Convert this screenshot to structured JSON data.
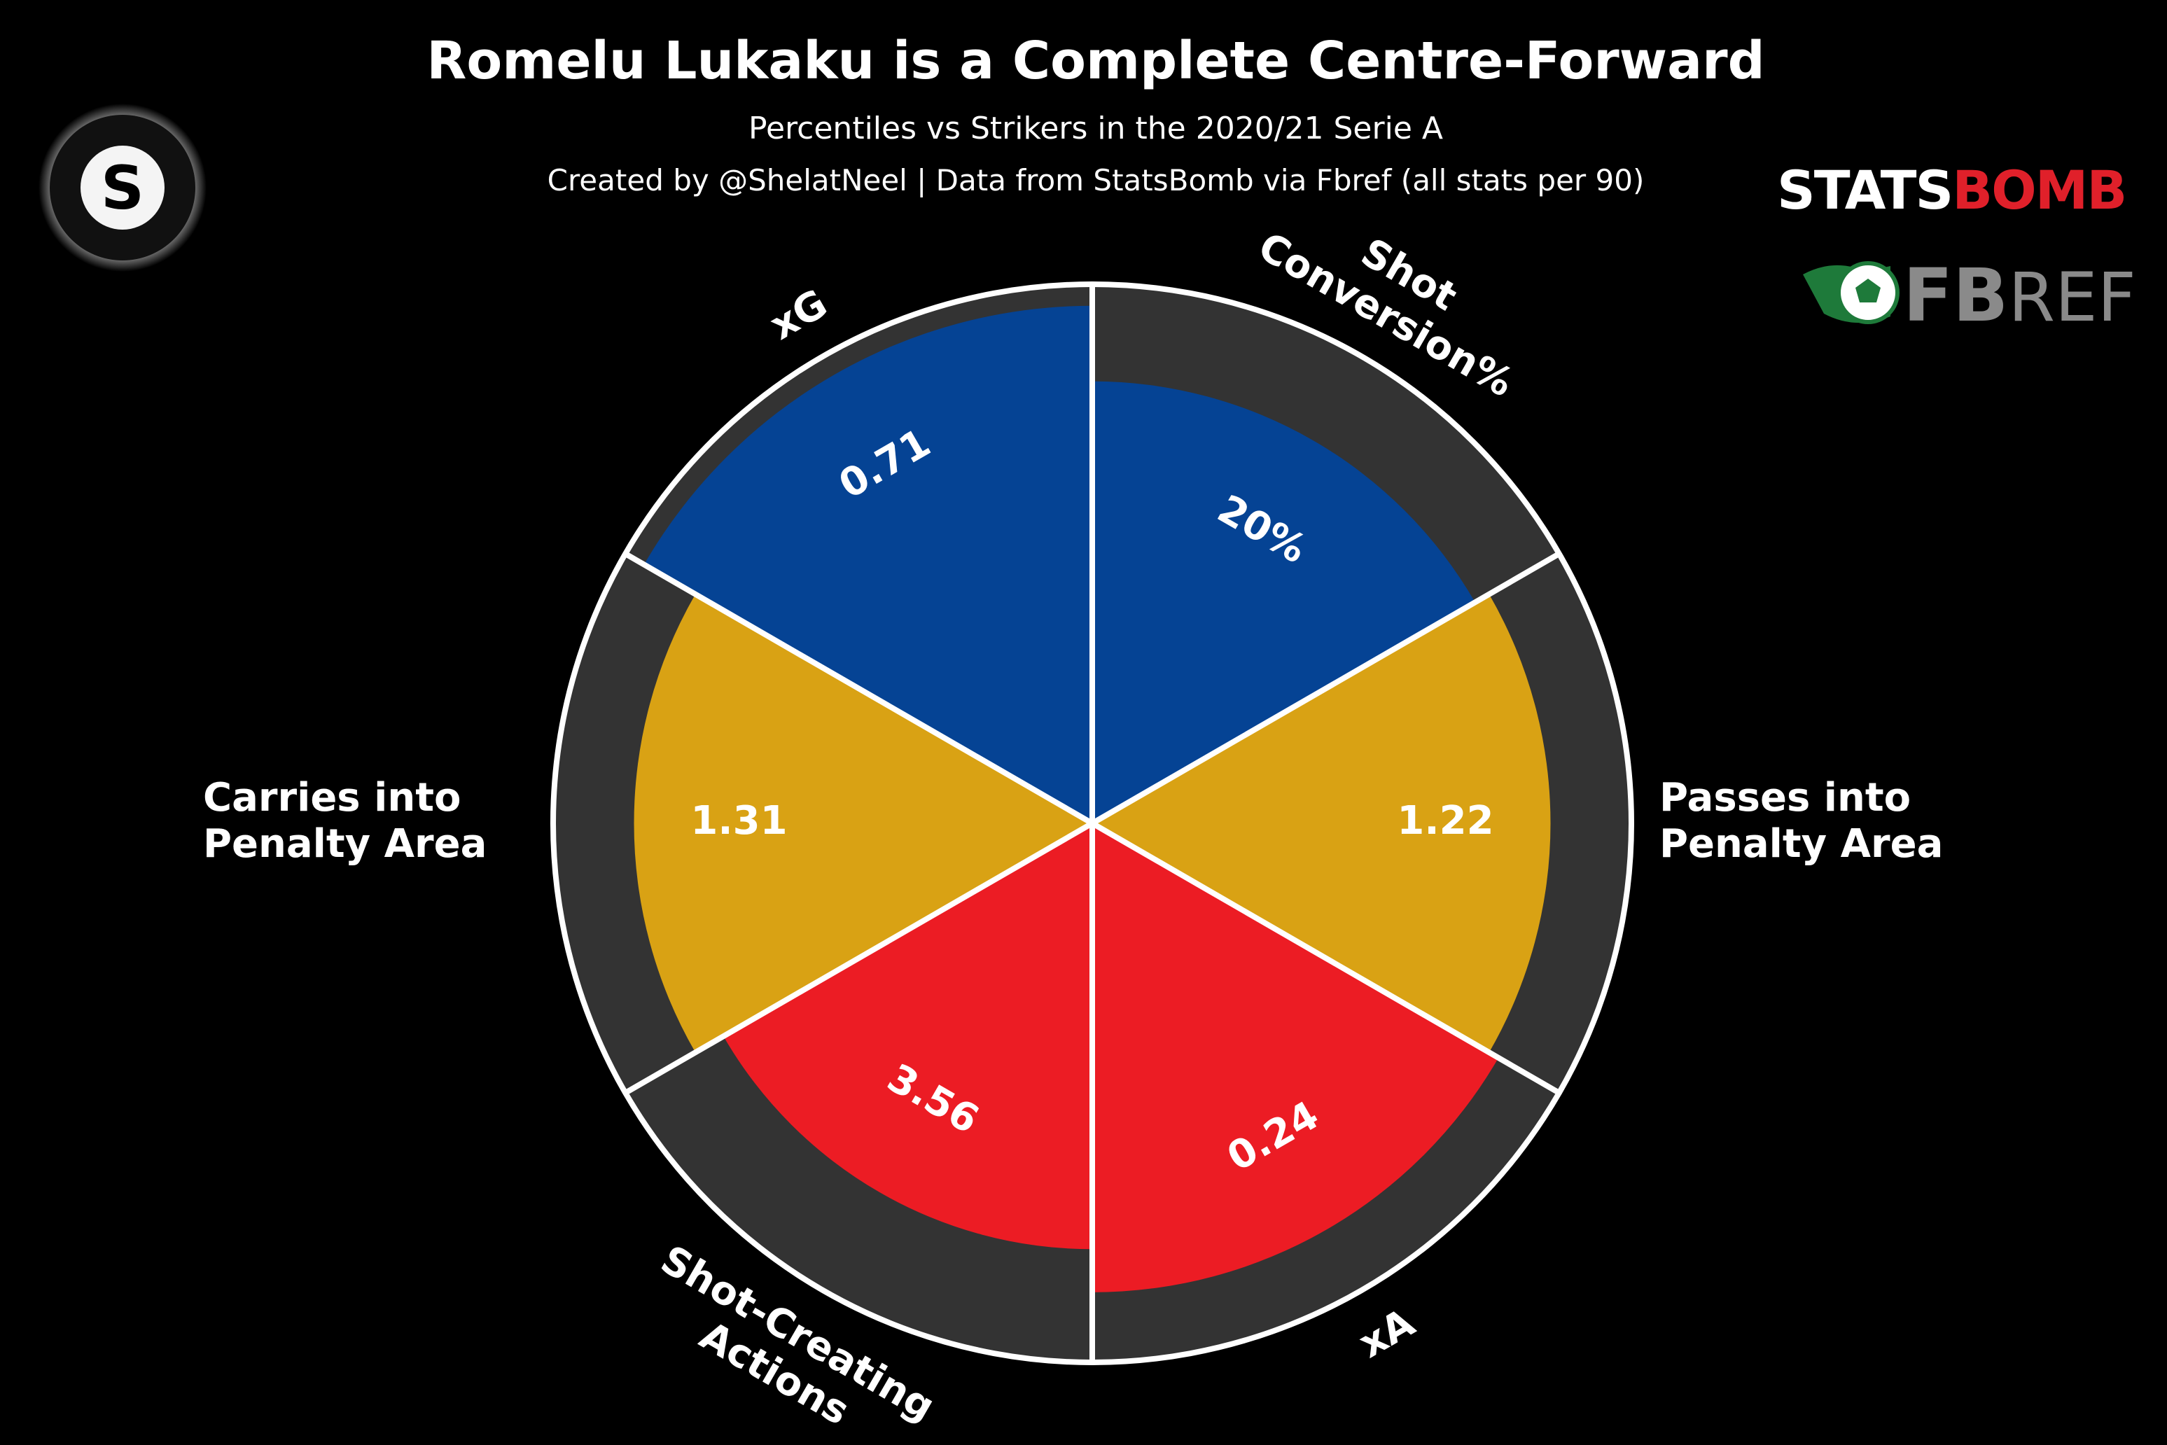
{
  "header": {
    "title": "Romelu Lukaku is a Complete Centre-Forward",
    "subtitle": "Percentiles vs Strikers in the 2020/21 Serie A",
    "credit": "Created by @ShelatNeel | Data from StatsBomb via Fbref (all stats per 90)"
  },
  "logos": {
    "author_badge_letter": "S",
    "statsbomb_prefix": "STATS",
    "statsbomb_suffix": "B",
    "statsbomb_o": "O",
    "statsbomb_end": "MB",
    "fbref_prefix": "FB",
    "fbref_suffix": "REF"
  },
  "colors": {
    "background": "#000000",
    "track": "#333333",
    "shooting": "#054394",
    "possession": "#D9A214",
    "creation": "#EC1C24",
    "divider": "#ffffff",
    "statsbomb_red": "#E0202A",
    "fbref_green": "#1E7A3A",
    "fbref_gray": "#8A8A8A"
  },
  "chart_data": {
    "type": "pie",
    "variant": "radial-percentile",
    "value_axis": {
      "min": 0,
      "max": 100,
      "unit": "percentile"
    },
    "slices": [
      {
        "label": [
          "Shot",
          "Conversion%"
        ],
        "value_text": "20%",
        "percentile": 82,
        "group": "shooting"
      },
      {
        "label": [
          "Passes into",
          "Penalty Area"
        ],
        "value_text": "1.22",
        "percentile": 85,
        "group": "possession"
      },
      {
        "label": [
          "xA"
        ],
        "value_text": "0.24",
        "percentile": 87,
        "group": "creation"
      },
      {
        "label": [
          "Shot-Creating",
          "Actions"
        ],
        "value_text": "3.56",
        "percentile": 79,
        "group": "creation"
      },
      {
        "label": [
          "Carries into",
          "Penalty Area"
        ],
        "value_text": "1.31",
        "percentile": 85,
        "group": "possession"
      },
      {
        "label": [
          "xG"
        ],
        "value_text": "0.71",
        "percentile": 96,
        "group": "shooting"
      }
    ]
  }
}
